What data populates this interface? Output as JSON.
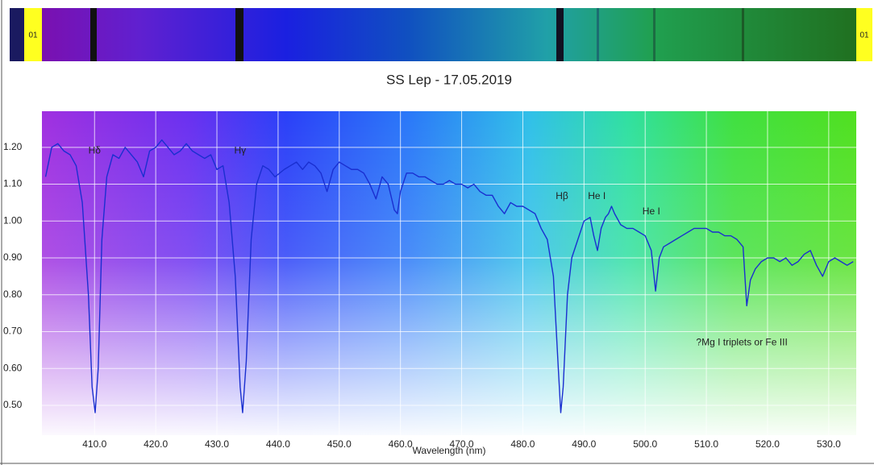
{
  "spectrum_strip": {
    "left_label": "01",
    "right_label": "01"
  },
  "chart_data": {
    "type": "line",
    "title": "SS Lep - 17.05.2019",
    "x_label": "Wavelength (nm)",
    "color": "#1a2fd0",
    "grid": true,
    "xlim": [
      401.4,
      534.5
    ],
    "ylim": [
      0.419,
      1.298
    ],
    "xticks": [
      {
        "value": 410,
        "label": "410.0"
      },
      {
        "value": 420,
        "label": "420.0"
      },
      {
        "value": 430,
        "label": "430.0"
      },
      {
        "value": 440,
        "label": "440.0"
      },
      {
        "value": 450,
        "label": "450.0"
      },
      {
        "value": 460,
        "label": "460.0"
      },
      {
        "value": 470,
        "label": "470.0"
      },
      {
        "value": 480,
        "label": "480.0"
      },
      {
        "value": 490,
        "label": "490.0"
      },
      {
        "value": 500,
        "label": "500.0"
      },
      {
        "value": 510,
        "label": "510.0"
      },
      {
        "value": 520,
        "label": "520.0"
      },
      {
        "value": 530,
        "label": "530.0"
      }
    ],
    "yticks": [
      {
        "value": 0.5,
        "label": "0.50"
      },
      {
        "value": 0.6,
        "label": "0.60"
      },
      {
        "value": 0.7,
        "label": "0.70"
      },
      {
        "value": 0.8,
        "label": "0.80"
      },
      {
        "value": 0.9,
        "label": "0.90"
      },
      {
        "value": 1.0,
        "label": "1.00"
      },
      {
        "value": 1.1,
        "label": "1.10"
      },
      {
        "value": 1.2,
        "label": "1.20"
      }
    ],
    "annotations": [
      {
        "text": "Hδ",
        "x": 410.0,
        "y": 1.19
      },
      {
        "text": "Hγ",
        "x": 433.8,
        "y": 1.19
      },
      {
        "text": "Hβ",
        "x": 486.4,
        "y": 1.067
      },
      {
        "text": "He I",
        "x": 492.1,
        "y": 1.067
      },
      {
        "text": "He I",
        "x": 501.0,
        "y": 1.025
      },
      {
        "text": "?Mg I triplets or Fe III",
        "x": 515.8,
        "y": 0.67
      }
    ],
    "x": [
      402,
      403,
      404,
      405,
      406,
      407,
      408,
      409,
      409.6,
      410.1,
      410.6,
      411.2,
      412,
      413,
      414,
      415,
      416,
      417,
      418,
      419,
      420,
      421,
      422,
      423,
      424,
      425,
      426,
      427,
      428,
      429,
      430,
      431,
      432,
      433,
      433.8,
      434.2,
      434.8,
      435.6,
      436.5,
      437.5,
      438.5,
      439.5,
      441,
      442,
      443,
      444,
      445,
      446,
      447,
      448,
      449,
      450,
      451,
      452,
      453,
      454,
      455,
      456,
      457,
      458,
      459,
      459.5,
      460,
      461,
      462,
      463,
      464,
      465,
      466,
      467,
      468,
      469,
      470,
      471,
      472,
      473,
      474,
      475,
      476,
      477,
      478,
      479,
      480,
      481,
      482,
      483,
      484,
      485,
      485.8,
      486.2,
      486.6,
      487.3,
      488,
      489,
      490,
      491,
      491.6,
      492.2,
      492.8,
      493.5,
      494,
      494.5,
      495,
      496,
      497,
      498,
      499,
      500,
      501,
      501.7,
      502.3,
      503,
      504,
      505,
      506,
      507,
      508,
      509,
      510,
      511,
      512,
      513,
      514,
      515,
      516,
      516.6,
      517.2,
      518,
      519,
      520,
      521,
      522,
      523,
      524,
      525,
      526,
      527,
      528,
      529,
      530,
      531,
      532,
      533,
      534
    ],
    "values": [
      1.12,
      1.2,
      1.21,
      1.19,
      1.18,
      1.15,
      1.05,
      0.8,
      0.55,
      0.48,
      0.6,
      0.95,
      1.12,
      1.18,
      1.17,
      1.2,
      1.18,
      1.16,
      1.12,
      1.19,
      1.2,
      1.22,
      1.2,
      1.18,
      1.19,
      1.21,
      1.19,
      1.18,
      1.17,
      1.18,
      1.14,
      1.15,
      1.05,
      0.85,
      0.55,
      0.48,
      0.62,
      0.95,
      1.1,
      1.15,
      1.14,
      1.12,
      1.14,
      1.15,
      1.16,
      1.14,
      1.16,
      1.15,
      1.13,
      1.08,
      1.14,
      1.16,
      1.15,
      1.14,
      1.14,
      1.13,
      1.1,
      1.06,
      1.12,
      1.1,
      1.03,
      1.02,
      1.08,
      1.13,
      1.13,
      1.12,
      1.12,
      1.11,
      1.1,
      1.1,
      1.11,
      1.1,
      1.1,
      1.09,
      1.1,
      1.08,
      1.07,
      1.07,
      1.04,
      1.02,
      1.05,
      1.04,
      1.04,
      1.03,
      1.02,
      0.98,
      0.95,
      0.85,
      0.6,
      0.48,
      0.55,
      0.8,
      0.9,
      0.95,
      1.0,
      1.01,
      0.96,
      0.92,
      0.98,
      1.01,
      1.02,
      1.04,
      1.02,
      0.99,
      0.98,
      0.98,
      0.97,
      0.96,
      0.92,
      0.81,
      0.9,
      0.93,
      0.94,
      0.95,
      0.96,
      0.97,
      0.98,
      0.98,
      0.98,
      0.97,
      0.97,
      0.96,
      0.96,
      0.95,
      0.93,
      0.77,
      0.84,
      0.87,
      0.89,
      0.9,
      0.9,
      0.89,
      0.9,
      0.88,
      0.89,
      0.91,
      0.92,
      0.88,
      0.85,
      0.89,
      0.9,
      0.89,
      0.88,
      0.89
    ]
  }
}
